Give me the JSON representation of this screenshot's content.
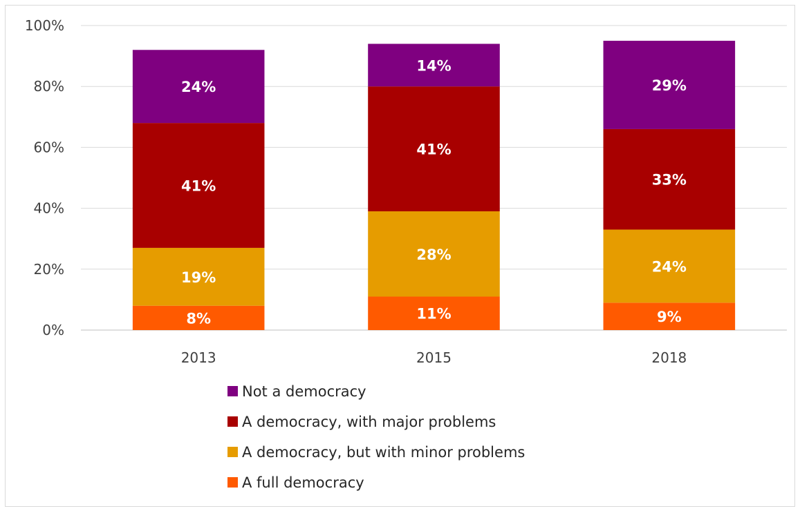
{
  "chart_data": {
    "type": "bar",
    "stacked": true,
    "categories": [
      "2013",
      "2015",
      "2018"
    ],
    "ylim": [
      0,
      100
    ],
    "y_ticks": [
      "0%",
      "20%",
      "40%",
      "60%",
      "80%",
      "100%"
    ],
    "grid": true,
    "legend_position": "bottom",
    "series": [
      {
        "name": "A full democracy",
        "color": "#ff5a00",
        "values": [
          8,
          11,
          9
        ],
        "labels": [
          "8%",
          "11%",
          "9%"
        ]
      },
      {
        "name": "A democracy, but with minor problems",
        "color": "#e69c00",
        "values": [
          19,
          28,
          24
        ],
        "labels": [
          "19%",
          "28%",
          "24%"
        ]
      },
      {
        "name": "A democracy, with major problems",
        "color": "#a80000",
        "values": [
          41,
          41,
          33
        ],
        "labels": [
          "41%",
          "41%",
          "33%"
        ]
      },
      {
        "name": "Not a democracy",
        "color": "#7f0080",
        "values": [
          24,
          14,
          29
        ],
        "labels": [
          "24%",
          "14%",
          "29%"
        ]
      }
    ],
    "legend_order": [
      "Not a democracy",
      "A democracy, with major problems",
      "A democracy, but with minor problems",
      "A full democracy"
    ]
  }
}
